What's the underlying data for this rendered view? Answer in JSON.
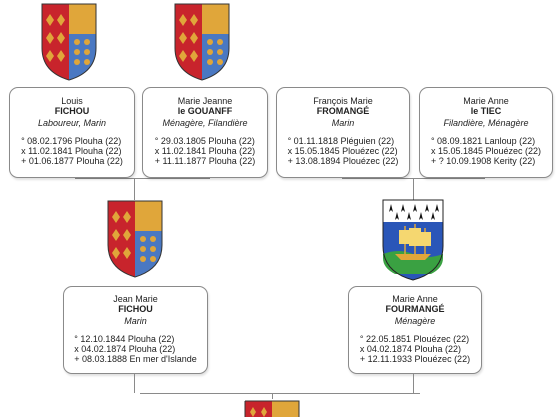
{
  "persons": {
    "louis": {
      "first": "Louis",
      "last": "FICHOU",
      "occupation": "Laboureur, Marin",
      "events": [
        "° 08.02.1796 Plouha (22)",
        "x 11.02.1841 Plouha (22)",
        "+ 01.06.1877 Plouha (22)"
      ]
    },
    "marie_jeanne": {
      "first": "Marie Jeanne",
      "last": "le GOUANFF",
      "occupation": "Ménagère, Filandière",
      "events": [
        "° 29.03.1805 Plouha (22)",
        "x 11.02.1841 Plouha (22)",
        "+ 11.11.1877 Plouha (22)"
      ]
    },
    "francois": {
      "first": "François Marie",
      "last": "FROMANGÉ",
      "occupation": "Marin",
      "events": [
        "° 01.11.1818 Pléguien (22)",
        "x 15.05.1845 Plouézec (22)",
        "+ 13.08.1894 Plouézec (22)"
      ]
    },
    "marie_anne_tiec": {
      "first": "Marie Anne",
      "last": "le TIEC",
      "occupation": "Filandière, Ménagère",
      "events": [
        "° 08.09.1821 Lanloup (22)",
        "x 15.05.1845 Plouézec (22)",
        "+ ? 10.09.1908 Kerity (22)"
      ]
    },
    "jean_marie": {
      "first": "Jean Marie",
      "last": "FICHOU",
      "occupation": "Marin",
      "events": [
        "° 12.10.1844 Plouha (22)",
        "x 04.02.1874 Plouha (22)",
        "+ 08.03.1888 En mer d'Islande"
      ]
    },
    "marie_anne_fourmange": {
      "first": "Marie Anne",
      "last": "FOURMANGÉ",
      "occupation": "Ménagère",
      "events": [
        "° 22.05.1851 Plouézec (22)",
        "x 04.02.1874 Plouha (22)",
        "+ 12.11.1933 Plouézec (22)"
      ]
    }
  },
  "crests": {
    "plouha": "plouha-coat-of-arms-icon",
    "plouezec": "plouezec-coat-of-arms-icon"
  },
  "colors": {
    "card_border": "#8a8a8a",
    "crest_red": "#c8242c",
    "crest_gold": "#e0a63a",
    "crest_blue": "#4a78c2"
  }
}
